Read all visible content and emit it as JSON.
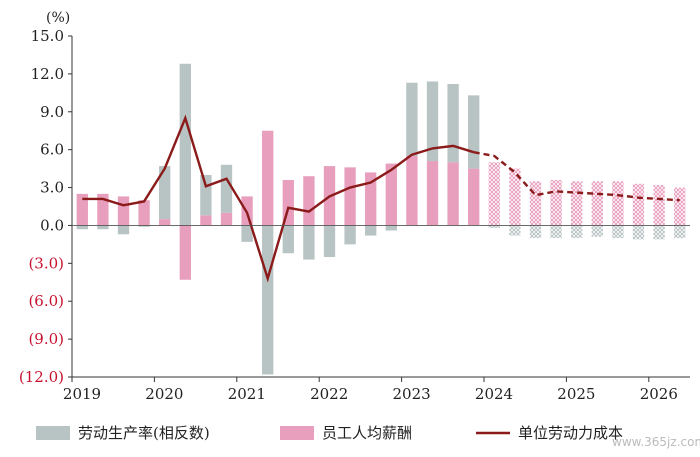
{
  "chart_data": {
    "type": "bar",
    "unit_label": "(%)",
    "ylim": [
      -12,
      15
    ],
    "yticks": [
      15,
      12,
      9,
      6,
      3,
      0,
      -3,
      -6,
      -9,
      -12
    ],
    "ytick_labels": [
      "15.0",
      "12.0",
      "9.0",
      "6.0",
      "3.0",
      "0.0",
      "(3.0)",
      "(6.0)",
      "(9.0)",
      "(12.0)"
    ],
    "year_labels": [
      "2019",
      "2020",
      "2021",
      "2022",
      "2023",
      "2024",
      "2025",
      "2026"
    ],
    "quarters_per_year": 4,
    "actual_quarters": 20,
    "series": [
      {
        "name": "劳动生产率(相反数)",
        "color": "#b8c3c3",
        "values": [
          -0.3,
          -0.3,
          -0.7,
          -0.1,
          4.2,
          12.8,
          3.2,
          3.8,
          -1.3,
          -11.8,
          -2.2,
          -2.7,
          -2.5,
          -1.5,
          -0.8,
          -0.4,
          5.8,
          6.3,
          6.2,
          5.8,
          -0.2,
          -0.8,
          -1.0,
          -1.0,
          -1.0,
          -0.9,
          -1.0,
          -1.1,
          -1.1,
          -1.0
        ]
      },
      {
        "name": "员工人均薪酬",
        "color": "#e89fbe",
        "values": [
          2.5,
          2.5,
          2.3,
          2.0,
          0.5,
          -4.3,
          0.8,
          1.0,
          2.3,
          7.5,
          3.6,
          3.9,
          4.7,
          4.6,
          4.2,
          4.9,
          5.5,
          5.1,
          5.0,
          4.5,
          5.0,
          4.5,
          3.5,
          3.6,
          3.5,
          3.5,
          3.5,
          3.3,
          3.2,
          3.0
        ]
      },
      {
        "name": "单位劳动力成本",
        "color": "#8b1a1a",
        "type": "line",
        "values": [
          2.1,
          2.1,
          1.6,
          1.9,
          4.5,
          8.5,
          3.1,
          3.7,
          1.0,
          -4.2,
          1.4,
          1.1,
          2.3,
          3.0,
          3.4,
          4.4,
          5.6,
          6.1,
          6.3,
          5.8,
          5.5,
          4.2,
          2.4,
          2.7,
          2.6,
          2.5,
          2.4,
          2.2,
          2.1,
          2.0
        ]
      }
    ],
    "legend_position": "bottom"
  },
  "watermark": "www.365jz.com"
}
